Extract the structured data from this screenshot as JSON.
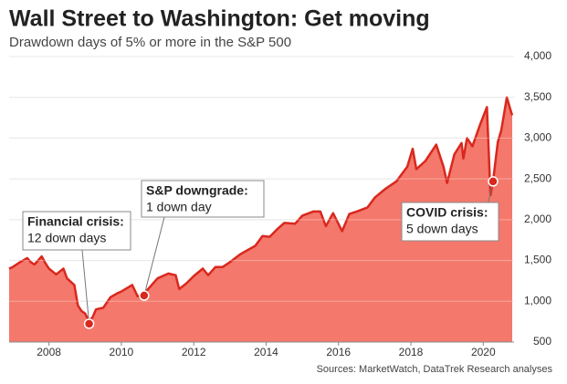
{
  "chart_data": {
    "type": "area",
    "title": "Wall Street to Washington: Get moving",
    "subtitle": "Drawdown days of 5% or more in the S&P 500",
    "source": "Sources: MarketWatch, DataTrek Research analyses",
    "x": [
      2006.9,
      2007.0,
      2007.2,
      2007.4,
      2007.5,
      2007.6,
      2007.8,
      2007.9,
      2008.0,
      2008.2,
      2008.4,
      2008.5,
      2008.7,
      2008.8,
      2008.9,
      2009.0,
      2009.1,
      2009.2,
      2009.3,
      2009.5,
      2009.7,
      2009.9,
      2010.0,
      2010.3,
      2010.45,
      2010.6,
      2010.8,
      2011.0,
      2011.3,
      2011.5,
      2011.6,
      2011.8,
      2012.0,
      2012.25,
      2012.4,
      2012.6,
      2012.8,
      2013.0,
      2013.3,
      2013.5,
      2013.7,
      2013.9,
      2014.1,
      2014.3,
      2014.5,
      2014.8,
      2015.0,
      2015.3,
      2015.5,
      2015.65,
      2015.85,
      2016.1,
      2016.3,
      2016.5,
      2016.8,
      2017.0,
      2017.3,
      2017.6,
      2017.9,
      2018.05,
      2018.15,
      2018.4,
      2018.7,
      2018.9,
      2019.0,
      2019.2,
      2019.4,
      2019.45,
      2019.55,
      2019.7,
      2019.9,
      2020.1,
      2020.2,
      2020.27,
      2020.4,
      2020.5,
      2020.65,
      2020.75,
      2020.8
    ],
    "series": [
      {
        "name": "S&P 500",
        "color": "#d9281e",
        "fill": "#f4786b",
        "values": [
          1400,
          1420,
          1480,
          1530,
          1480,
          1450,
          1550,
          1470,
          1400,
          1330,
          1400,
          1280,
          1200,
          950,
          880,
          850,
          760,
          800,
          900,
          920,
          1050,
          1100,
          1120,
          1200,
          1060,
          1080,
          1180,
          1280,
          1340,
          1320,
          1150,
          1220,
          1310,
          1400,
          1320,
          1420,
          1420,
          1480,
          1580,
          1630,
          1680,
          1800,
          1790,
          1880,
          1960,
          1950,
          2050,
          2100,
          2100,
          1920,
          2080,
          1860,
          2070,
          2100,
          2150,
          2270,
          2380,
          2470,
          2650,
          2870,
          2620,
          2720,
          2920,
          2650,
          2450,
          2800,
          2940,
          2750,
          3000,
          2900,
          3150,
          3380,
          2300,
          2470,
          2950,
          3100,
          3500,
          3350,
          3280
        ]
      }
    ],
    "annotations": [
      {
        "title": "Financial crisis:",
        "text": "12 down days",
        "x": 2009.11,
        "y": 724
      },
      {
        "title": "S&P downgrade:",
        "text": "1 down day",
        "x": 2010.63,
        "y": 1070
      },
      {
        "title": "COVID crisis:",
        "text": "5 down days",
        "x": 2020.27,
        "y": 2469
      }
    ],
    "xlim": [
      2006.9,
      2020.85
    ],
    "xticks": [
      2008,
      2010,
      2012,
      2014,
      2016,
      2018,
      2020
    ],
    "ylim": [
      500,
      4000
    ],
    "yticks": [
      {
        "value": 500,
        "label": "500"
      },
      {
        "value": 1000,
        "label": "1,000"
      },
      {
        "value": 1500,
        "label": "1,500"
      },
      {
        "value": 2000,
        "label": "2,000"
      },
      {
        "value": 2500,
        "label": "2,500"
      },
      {
        "value": 3000,
        "label": "3,000"
      },
      {
        "value": 3500,
        "label": "3,500"
      },
      {
        "value": 4000,
        "label": "4,000"
      }
    ],
    "grid": true
  }
}
